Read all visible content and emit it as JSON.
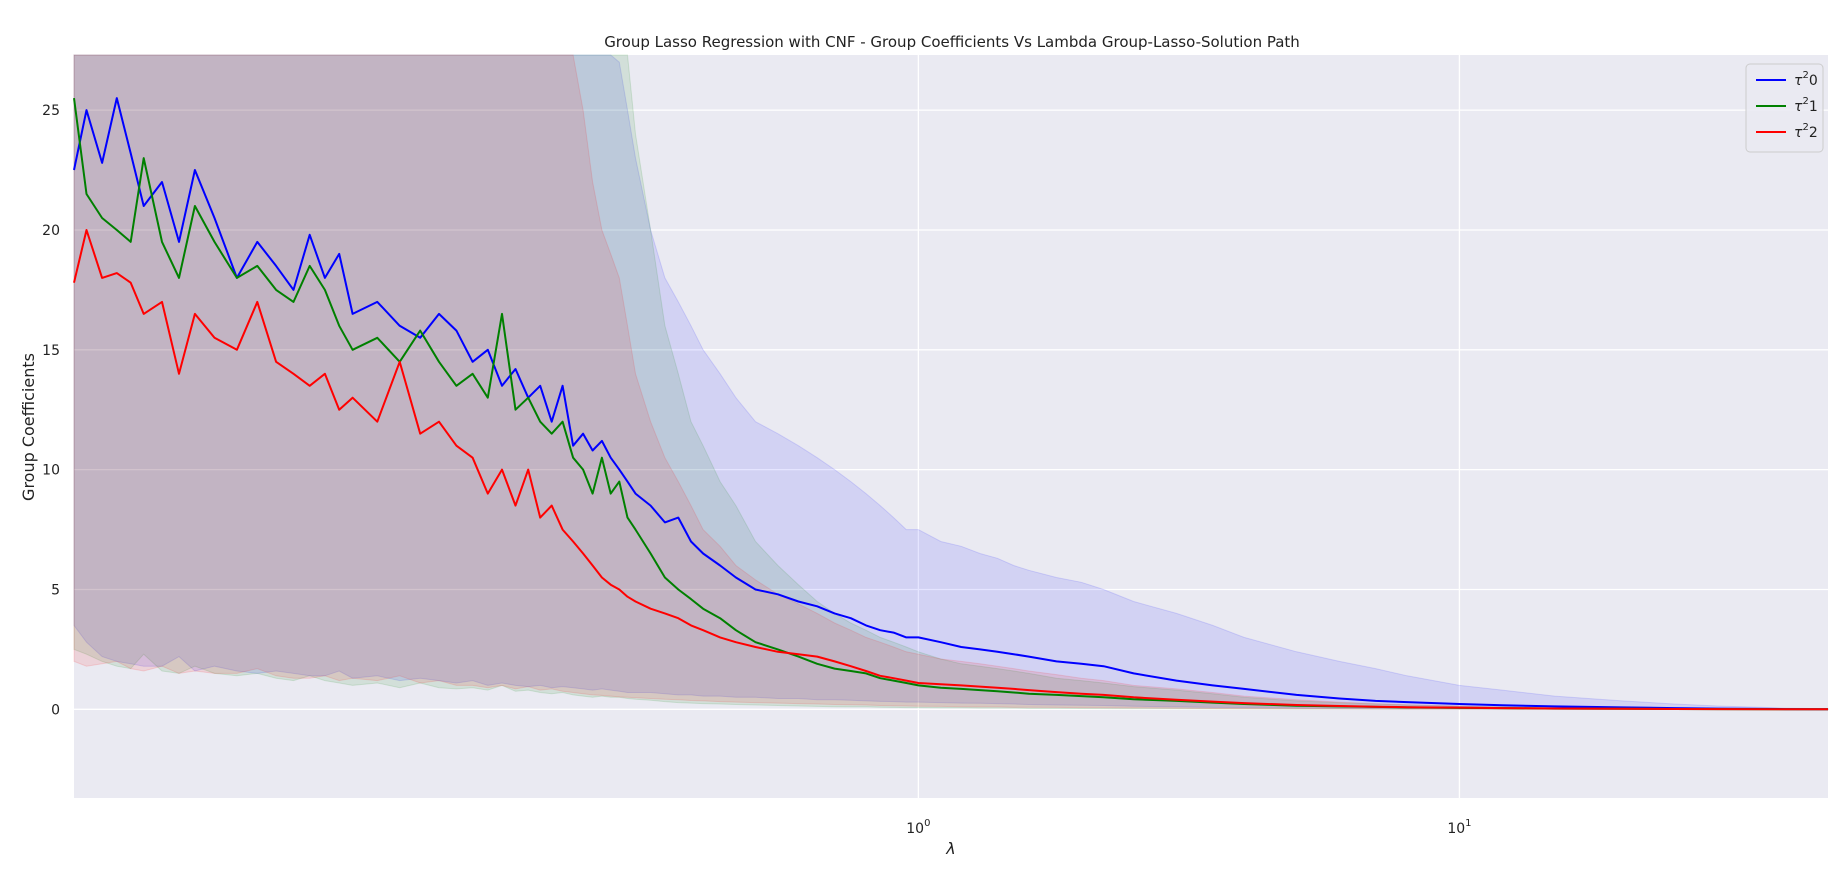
{
  "chart_data": {
    "type": "line",
    "title": "Group Lasso Regression with CNF - Group Coefficients Vs Lambda Group-Lasso-Solution Path",
    "xlabel": "λ",
    "ylabel": "Group Coefficients",
    "xscale": "log",
    "xlim": [
      0.0275,
      48.0
    ],
    "ylim": [
      -3.7,
      27.3
    ],
    "xticks": [
      {
        "value": 1,
        "base": "10",
        "exp": "0"
      },
      {
        "value": 10,
        "base": "10",
        "exp": "1"
      }
    ],
    "yticks": [
      0,
      5,
      10,
      15,
      20,
      25
    ],
    "grid": true,
    "background": "#eaeaf2",
    "legend_position": "top-right",
    "series": [
      {
        "name_base": "τ",
        "name_sup": "2",
        "name_suffix": "0",
        "color": "#0000ff",
        "x": [
          0.0275,
          0.029,
          0.031,
          0.033,
          0.035,
          0.037,
          0.04,
          0.043,
          0.046,
          0.05,
          0.055,
          0.06,
          0.065,
          0.07,
          0.075,
          0.08,
          0.085,
          0.09,
          0.1,
          0.11,
          0.12,
          0.13,
          0.14,
          0.15,
          0.16,
          0.17,
          0.18,
          0.19,
          0.2,
          0.21,
          0.22,
          0.23,
          0.24,
          0.25,
          0.26,
          0.27,
          0.28,
          0.29,
          0.3,
          0.32,
          0.34,
          0.36,
          0.38,
          0.4,
          0.43,
          0.46,
          0.5,
          0.55,
          0.6,
          0.65,
          0.7,
          0.75,
          0.8,
          0.85,
          0.9,
          0.95,
          1.0,
          1.1,
          1.2,
          1.3,
          1.4,
          1.5,
          1.6,
          1.8,
          2.0,
          2.2,
          2.5,
          3.0,
          3.5,
          4.0,
          5.0,
          6.0,
          7.0,
          8.0,
          10.0,
          12.0,
          15.0,
          20.0,
          25.0,
          30.0,
          40.0,
          48.0
        ],
        "y": [
          22.5,
          25.0,
          22.8,
          25.5,
          23.2,
          21.0,
          22.0,
          19.5,
          22.5,
          20.5,
          18.0,
          19.5,
          18.5,
          17.5,
          19.8,
          18.0,
          19.0,
          16.5,
          17.0,
          16.0,
          15.5,
          16.5,
          15.8,
          14.5,
          15.0,
          13.5,
          14.2,
          13.0,
          13.5,
          12.0,
          13.5,
          11.0,
          11.5,
          10.8,
          11.2,
          10.5,
          10.0,
          9.5,
          9.0,
          8.5,
          7.8,
          8.0,
          7.0,
          6.5,
          6.0,
          5.5,
          5.0,
          4.8,
          4.5,
          4.3,
          4.0,
          3.8,
          3.5,
          3.3,
          3.2,
          3.0,
          3.0,
          2.8,
          2.6,
          2.5,
          2.4,
          2.3,
          2.2,
          2.0,
          1.9,
          1.8,
          1.5,
          1.2,
          1.0,
          0.85,
          0.6,
          0.45,
          0.35,
          0.3,
          0.22,
          0.17,
          0.12,
          0.08,
          0.05,
          0.03,
          0.01,
          0.0
        ],
        "band_low": [
          3.5,
          2.8,
          2.2,
          2.0,
          1.9,
          1.8,
          1.8,
          2.2,
          1.6,
          1.8,
          1.6,
          1.5,
          1.6,
          1.5,
          1.4,
          1.4,
          1.6,
          1.3,
          1.4,
          1.2,
          1.3,
          1.2,
          1.1,
          1.2,
          1.0,
          1.1,
          1.0,
          0.95,
          1.0,
          0.9,
          0.95,
          0.9,
          0.85,
          0.8,
          0.85,
          0.8,
          0.75,
          0.7,
          0.7,
          0.7,
          0.65,
          0.6,
          0.6,
          0.55,
          0.55,
          0.5,
          0.5,
          0.45,
          0.45,
          0.4,
          0.4,
          0.38,
          0.35,
          0.33,
          0.32,
          0.3,
          0.3,
          0.28,
          0.26,
          0.25,
          0.24,
          0.22,
          0.2,
          0.18,
          0.17,
          0.16,
          0.13,
          0.1,
          0.08,
          0.07,
          0.05,
          0.04,
          0.03,
          0.025,
          0.02,
          0.015,
          0.01,
          0.007,
          0.005,
          0.003,
          0.001,
          0.0
        ],
        "band_high": [
          27.3,
          27.3,
          27.3,
          27.3,
          27.3,
          27.3,
          27.3,
          27.3,
          27.3,
          27.3,
          27.3,
          27.3,
          27.3,
          27.3,
          27.3,
          27.3,
          27.3,
          27.3,
          27.3,
          27.3,
          27.3,
          27.3,
          27.3,
          27.3,
          27.3,
          27.3,
          27.3,
          27.3,
          27.3,
          27.3,
          27.3,
          27.3,
          27.3,
          27.3,
          27.3,
          27.3,
          27.0,
          25.0,
          23.0,
          20.0,
          18.0,
          17.0,
          16.0,
          15.0,
          14.0,
          13.0,
          12.0,
          11.5,
          11.0,
          10.5,
          10.0,
          9.5,
          9.0,
          8.5,
          8.0,
          7.5,
          7.5,
          7.0,
          6.8,
          6.5,
          6.3,
          6.0,
          5.8,
          5.5,
          5.3,
          5.0,
          4.5,
          4.0,
          3.5,
          3.0,
          2.4,
          2.0,
          1.7,
          1.4,
          1.0,
          0.8,
          0.55,
          0.35,
          0.22,
          0.14,
          0.05,
          0.02
        ]
      },
      {
        "name_base": "τ",
        "name_sup": "2",
        "name_suffix": "1",
        "color": "#008000",
        "x": [
          0.0275,
          0.029,
          0.031,
          0.033,
          0.035,
          0.037,
          0.04,
          0.043,
          0.046,
          0.05,
          0.055,
          0.06,
          0.065,
          0.07,
          0.075,
          0.08,
          0.085,
          0.09,
          0.1,
          0.11,
          0.12,
          0.13,
          0.14,
          0.15,
          0.16,
          0.17,
          0.18,
          0.19,
          0.2,
          0.21,
          0.22,
          0.23,
          0.24,
          0.25,
          0.26,
          0.27,
          0.28,
          0.29,
          0.3,
          0.32,
          0.34,
          0.36,
          0.38,
          0.4,
          0.43,
          0.46,
          0.5,
          0.55,
          0.6,
          0.65,
          0.7,
          0.75,
          0.8,
          0.85,
          0.9,
          0.95,
          1.0,
          1.1,
          1.2,
          1.3,
          1.4,
          1.5,
          1.6,
          1.8,
          2.0,
          2.2,
          2.5,
          3.0,
          3.5,
          4.0,
          5.0,
          6.0,
          7.0,
          8.0,
          10.0,
          12.0,
          15.0,
          20.0,
          25.0,
          30.0,
          40.0,
          48.0
        ],
        "y": [
          25.5,
          21.5,
          20.5,
          20.0,
          19.5,
          23.0,
          19.5,
          18.0,
          21.0,
          19.5,
          18.0,
          18.5,
          17.5,
          17.0,
          18.5,
          17.5,
          16.0,
          15.0,
          15.5,
          14.5,
          15.8,
          14.5,
          13.5,
          14.0,
          13.0,
          16.5,
          12.5,
          13.0,
          12.0,
          11.5,
          12.0,
          10.5,
          10.0,
          9.0,
          10.5,
          9.0,
          9.5,
          8.0,
          7.5,
          6.5,
          5.5,
          5.0,
          4.6,
          4.2,
          3.8,
          3.3,
          2.8,
          2.5,
          2.2,
          1.9,
          1.7,
          1.6,
          1.5,
          1.3,
          1.2,
          1.1,
          1.0,
          0.9,
          0.85,
          0.8,
          0.75,
          0.7,
          0.65,
          0.6,
          0.55,
          0.5,
          0.42,
          0.35,
          0.28,
          0.22,
          0.15,
          0.12,
          0.1,
          0.08,
          0.06,
          0.05,
          0.03,
          0.02,
          0.015,
          0.01,
          0.005,
          0.0
        ],
        "band_low": [
          2.5,
          2.3,
          2.0,
          1.8,
          1.7,
          2.3,
          1.6,
          1.5,
          1.8,
          1.5,
          1.4,
          1.5,
          1.3,
          1.2,
          1.4,
          1.2,
          1.1,
          1.0,
          1.1,
          0.9,
          1.1,
          0.9,
          0.85,
          0.9,
          0.8,
          1.0,
          0.75,
          0.8,
          0.7,
          0.65,
          0.7,
          0.6,
          0.55,
          0.5,
          0.55,
          0.5,
          0.5,
          0.45,
          0.42,
          0.38,
          0.32,
          0.28,
          0.26,
          0.24,
          0.22,
          0.2,
          0.18,
          0.16,
          0.14,
          0.12,
          0.11,
          0.1,
          0.1,
          0.09,
          0.08,
          0.07,
          0.07,
          0.06,
          0.06,
          0.05,
          0.05,
          0.05,
          0.04,
          0.04,
          0.035,
          0.03,
          0.025,
          0.02,
          0.017,
          0.013,
          0.01,
          0.008,
          0.006,
          0.005,
          0.004,
          0.003,
          0.002,
          0.001,
          0.001,
          0.0,
          0.0,
          0.0
        ],
        "band_high": [
          27.3,
          27.3,
          27.3,
          27.3,
          27.3,
          27.3,
          27.3,
          27.3,
          27.3,
          27.3,
          27.3,
          27.3,
          27.3,
          27.3,
          27.3,
          27.3,
          27.3,
          27.3,
          27.3,
          27.3,
          27.3,
          27.3,
          27.3,
          27.3,
          27.3,
          27.3,
          27.3,
          27.3,
          27.3,
          27.3,
          27.3,
          27.3,
          27.3,
          27.3,
          27.3,
          27.3,
          27.3,
          27.3,
          24.0,
          20.0,
          16.0,
          14.0,
          12.0,
          11.0,
          9.5,
          8.5,
          7.0,
          6.0,
          5.2,
          4.5,
          4.0,
          3.6,
          3.3,
          3.0,
          2.8,
          2.6,
          2.4,
          2.1,
          1.9,
          1.8,
          1.7,
          1.6,
          1.5,
          1.3,
          1.2,
          1.1,
          0.95,
          0.8,
          0.65,
          0.5,
          0.35,
          0.27,
          0.22,
          0.18,
          0.13,
          0.1,
          0.07,
          0.05,
          0.035,
          0.022,
          0.01,
          0.003
        ]
      },
      {
        "name_base": "τ",
        "name_sup": "2",
        "name_suffix": "2",
        "color": "#ff0000",
        "x": [
          0.0275,
          0.029,
          0.031,
          0.033,
          0.035,
          0.037,
          0.04,
          0.043,
          0.046,
          0.05,
          0.055,
          0.06,
          0.065,
          0.07,
          0.075,
          0.08,
          0.085,
          0.09,
          0.1,
          0.11,
          0.12,
          0.13,
          0.14,
          0.15,
          0.16,
          0.17,
          0.18,
          0.19,
          0.2,
          0.21,
          0.22,
          0.23,
          0.24,
          0.25,
          0.26,
          0.27,
          0.28,
          0.29,
          0.3,
          0.32,
          0.34,
          0.36,
          0.38,
          0.4,
          0.43,
          0.46,
          0.5,
          0.55,
          0.6,
          0.65,
          0.7,
          0.75,
          0.8,
          0.85,
          0.9,
          0.95,
          1.0,
          1.1,
          1.2,
          1.3,
          1.4,
          1.5,
          1.6,
          1.8,
          2.0,
          2.2,
          2.5,
          3.0,
          3.5,
          4.0,
          5.0,
          6.0,
          7.0,
          8.0,
          10.0,
          12.0,
          15.0,
          20.0,
          25.0,
          30.0,
          40.0,
          48.0
        ],
        "y": [
          17.8,
          20.0,
          18.0,
          18.2,
          17.8,
          16.5,
          17.0,
          14.0,
          16.5,
          15.5,
          15.0,
          17.0,
          14.5,
          14.0,
          13.5,
          14.0,
          12.5,
          13.0,
          12.0,
          14.5,
          11.5,
          12.0,
          11.0,
          10.5,
          9.0,
          10.0,
          8.5,
          10.0,
          8.0,
          8.5,
          7.5,
          7.0,
          6.5,
          6.0,
          5.5,
          5.2,
          5.0,
          4.7,
          4.5,
          4.2,
          4.0,
          3.8,
          3.5,
          3.3,
          3.0,
          2.8,
          2.6,
          2.4,
          2.3,
          2.2,
          2.0,
          1.8,
          1.6,
          1.4,
          1.3,
          1.2,
          1.1,
          1.05,
          1.0,
          0.95,
          0.9,
          0.85,
          0.8,
          0.72,
          0.65,
          0.6,
          0.5,
          0.4,
          0.32,
          0.26,
          0.18,
          0.14,
          0.11,
          0.09,
          0.07,
          0.05,
          0.035,
          0.02,
          0.015,
          0.01,
          0.005,
          0.0
        ],
        "band_low": [
          2.0,
          1.8,
          1.9,
          2.0,
          1.7,
          1.6,
          1.8,
          1.5,
          1.6,
          1.5,
          1.5,
          1.7,
          1.4,
          1.3,
          1.3,
          1.4,
          1.2,
          1.3,
          1.2,
          1.4,
          1.1,
          1.2,
          1.0,
          1.0,
          0.9,
          1.0,
          0.85,
          0.95,
          0.8,
          0.85,
          0.75,
          0.7,
          0.65,
          0.6,
          0.58,
          0.55,
          0.52,
          0.5,
          0.48,
          0.45,
          0.42,
          0.4,
          0.37,
          0.35,
          0.32,
          0.3,
          0.28,
          0.26,
          0.24,
          0.22,
          0.2,
          0.19,
          0.18,
          0.16,
          0.15,
          0.14,
          0.13,
          0.12,
          0.11,
          0.1,
          0.1,
          0.09,
          0.09,
          0.08,
          0.07,
          0.065,
          0.055,
          0.045,
          0.035,
          0.028,
          0.02,
          0.016,
          0.012,
          0.01,
          0.008,
          0.006,
          0.004,
          0.002,
          0.001,
          0.001,
          0.0,
          0.0
        ],
        "band_high": [
          27.3,
          27.3,
          27.3,
          27.3,
          27.3,
          27.3,
          27.3,
          27.3,
          27.3,
          27.3,
          27.3,
          27.3,
          27.3,
          27.3,
          27.3,
          27.3,
          27.3,
          27.3,
          27.3,
          27.3,
          27.3,
          27.3,
          27.3,
          27.3,
          27.3,
          27.3,
          27.3,
          27.3,
          27.3,
          27.3,
          27.3,
          27.3,
          25.0,
          22.0,
          20.0,
          19.0,
          18.0,
          16.0,
          14.0,
          12.0,
          10.5,
          9.5,
          8.5,
          7.5,
          6.8,
          6.0,
          5.4,
          4.8,
          4.4,
          4.0,
          3.6,
          3.3,
          3.0,
          2.8,
          2.6,
          2.4,
          2.3,
          2.1,
          2.0,
          1.9,
          1.8,
          1.7,
          1.6,
          1.45,
          1.3,
          1.2,
          1.0,
          0.85,
          0.7,
          0.55,
          0.4,
          0.3,
          0.24,
          0.19,
          0.14,
          0.1,
          0.07,
          0.045,
          0.03,
          0.02,
          0.01,
          0.003
        ]
      }
    ]
  }
}
